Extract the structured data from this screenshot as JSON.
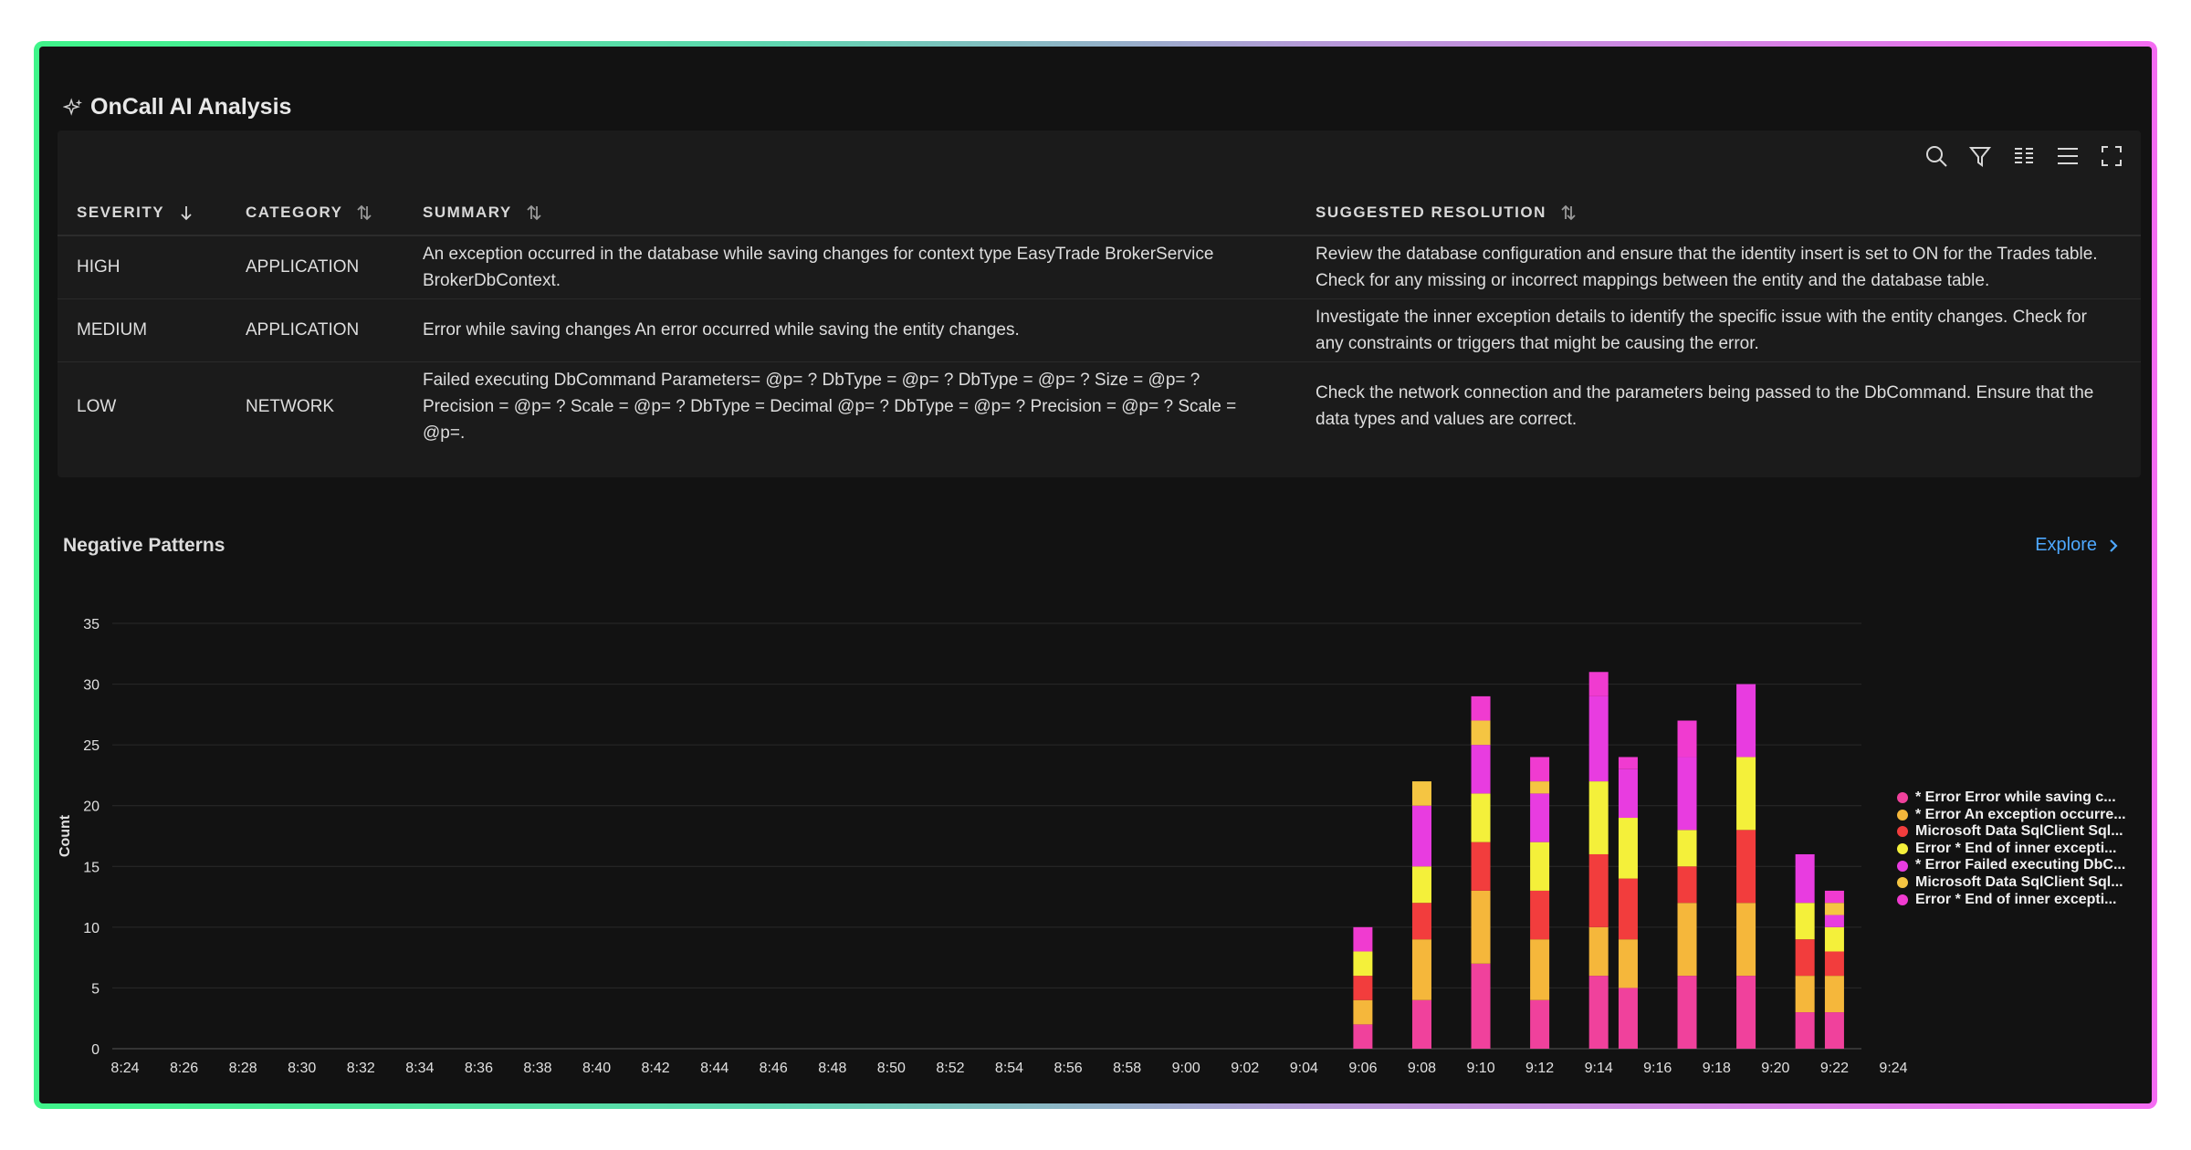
{
  "title": "OnCall AI Analysis",
  "toolbar": {
    "icons": [
      "search-icon",
      "filter-icon",
      "columns-icon",
      "density-icon",
      "fullscreen-icon"
    ]
  },
  "table": {
    "columns": [
      {
        "label": "SEVERITY",
        "sort": "desc"
      },
      {
        "label": "CATEGORY",
        "sort": "none"
      },
      {
        "label": "SUMMARY",
        "sort": "none"
      },
      {
        "label": "SUGGESTED RESOLUTION",
        "sort": "none"
      }
    ],
    "rows": [
      {
        "severity": "HIGH",
        "category": "APPLICATION",
        "summary": "An exception occurred in the database while saving changes for context type EasyTrade BrokerService BrokerDbContext.",
        "resolution": "Review the database configuration and ensure that the identity insert is set to ON for the Trades table. Check for any missing or incorrect mappings between the entity and the database table."
      },
      {
        "severity": "MEDIUM",
        "category": "APPLICATION",
        "summary": "Error while saving changes An error occurred while saving the entity changes.",
        "resolution": "Investigate the inner exception details to identify the specific issue with the entity changes. Check for any constraints or triggers that might be causing the error."
      },
      {
        "severity": "LOW",
        "category": "NETWORK",
        "summary": "Failed executing DbCommand Parameters= @p= ? DbType = @p= ? DbType = @p= ? Size = @p= ? Precision = @p= ? Scale = @p= ? DbType = Decimal @p= ? DbType = @p= ? Precision = @p= ? Scale = @p=.",
        "resolution": "Check the network connection and the parameters being passed to the DbCommand. Ensure that the data types and values are correct."
      }
    ]
  },
  "patterns": {
    "title": "Negative Patterns",
    "explore_label": "Explore"
  },
  "chart_data": {
    "type": "bar",
    "stacked": true,
    "ylabel": "Count",
    "ylim": [
      0,
      35
    ],
    "yticks": [
      0,
      5,
      10,
      15,
      20,
      25,
      30,
      35
    ],
    "grid": true,
    "legend_position": "right",
    "xticks": [
      "8:24",
      "8:26",
      "8:28",
      "8:30",
      "8:32",
      "8:34",
      "8:36",
      "8:38",
      "8:40",
      "8:42",
      "8:44",
      "8:46",
      "8:48",
      "8:50",
      "8:52",
      "8:54",
      "8:56",
      "8:58",
      "9:00",
      "9:02",
      "9:04",
      "9:06",
      "9:08",
      "9:10",
      "9:12",
      "9:14",
      "9:16",
      "9:18",
      "9:20",
      "9:22",
      "9:24"
    ],
    "categories": [
      "9:06",
      "9:08",
      "9:10",
      "9:12",
      "9:14",
      "9:15",
      "9:17",
      "9:19",
      "9:21",
      "9:22"
    ],
    "series": [
      {
        "name": "* Error Error while saving c...",
        "color": "#f0419c",
        "values": [
          2,
          4,
          7,
          4,
          6,
          5,
          6,
          6,
          3,
          3
        ]
      },
      {
        "name": "* Error An exception occurre...",
        "color": "#f5b73b",
        "values": [
          2,
          5,
          6,
          5,
          4,
          4,
          6,
          6,
          3,
          3
        ]
      },
      {
        "name": "Microsoft Data SqlClient Sql...",
        "color": "#f23d3d",
        "values": [
          2,
          3,
          4,
          4,
          6,
          5,
          3,
          6,
          3,
          2
        ]
      },
      {
        "name": "Error * End of inner excepti...",
        "color": "#f4f03a",
        "values": [
          2,
          3,
          4,
          4,
          6,
          5,
          3,
          6,
          3,
          2
        ]
      },
      {
        "name": "* Error Failed executing DbC...",
        "color": "#e83ce0",
        "values": [
          0,
          5,
          4,
          4,
          7,
          4,
          6,
          6,
          4,
          1
        ]
      },
      {
        "name": "Microsoft Data SqlClient Sql...",
        "color": "#f5c542",
        "values": [
          0,
          2,
          2,
          1,
          0,
          0,
          0,
          0,
          0,
          1
        ]
      },
      {
        "name": "Error * End of inner excepti...",
        "color": "#f03bd0",
        "values": [
          2,
          0,
          2,
          2,
          2,
          1,
          3,
          0,
          0,
          1
        ]
      }
    ]
  }
}
